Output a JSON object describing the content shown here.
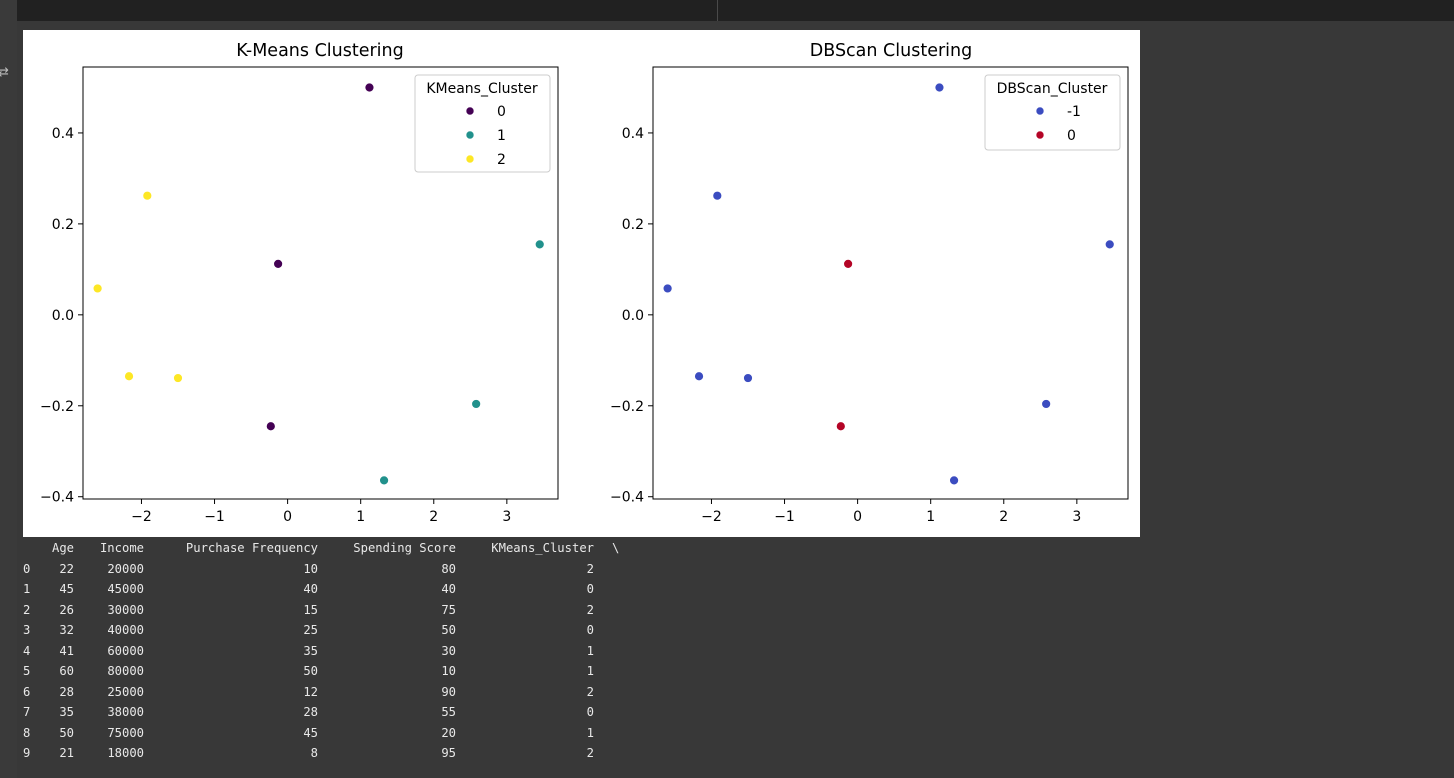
{
  "charts": [
    {
      "title": "K-Means Clustering",
      "legend_title": "KMeans_Cluster",
      "legend_entries": [
        {
          "label": "0",
          "color": "#440154"
        },
        {
          "label": "1",
          "color": "#21918c"
        },
        {
          "label": "2",
          "color": "#fde725"
        }
      ],
      "x_ticks": [
        "−2",
        "−1",
        "0",
        "1",
        "2",
        "3"
      ],
      "y_ticks": [
        "0.4",
        "0.2",
        "0.0",
        "−0.2",
        "−0.4"
      ]
    },
    {
      "title": "DBScan Clustering",
      "legend_title": "DBScan_Cluster",
      "legend_entries": [
        {
          "label": "-1",
          "color": "#3b4cc0"
        },
        {
          "label": "0",
          "color": "#b40426"
        }
      ],
      "x_ticks": [
        "−2",
        "−1",
        "0",
        "1",
        "2",
        "3"
      ],
      "y_ticks": [
        "0.4",
        "0.2",
        "0.0",
        "−0.2",
        "−0.4"
      ]
    }
  ],
  "chart_data": [
    {
      "type": "scatter",
      "title": "K-Means Clustering",
      "xlabel": "",
      "ylabel": "",
      "xlim": [
        -2.8,
        3.7
      ],
      "ylim": [
        -0.405,
        0.545
      ],
      "xticks": [
        -2,
        -1,
        0,
        1,
        2,
        3
      ],
      "yticks": [
        0.4,
        0.2,
        0.0,
        -0.2,
        -0.4
      ],
      "legend": "upper right",
      "legend_title": "KMeans_Cluster",
      "series": [
        {
          "name": "0",
          "color": "#440154",
          "points": [
            [
              1.12,
              0.5
            ],
            [
              -0.13,
              0.112
            ],
            [
              -0.23,
              -0.245
            ]
          ]
        },
        {
          "name": "1",
          "color": "#21918c",
          "points": [
            [
              3.45,
              0.155
            ],
            [
              2.58,
              -0.196
            ],
            [
              1.32,
              -0.364
            ]
          ]
        },
        {
          "name": "2",
          "color": "#fde725",
          "points": [
            [
              -1.92,
              0.262
            ],
            [
              -2.6,
              0.058
            ],
            [
              -2.17,
              -0.135
            ],
            [
              -1.5,
              -0.139
            ]
          ]
        }
      ]
    },
    {
      "type": "scatter",
      "title": "DBScan Clustering",
      "xlabel": "",
      "ylabel": "",
      "xlim": [
        -2.8,
        3.7
      ],
      "ylim": [
        -0.405,
        0.545
      ],
      "xticks": [
        -2,
        -1,
        0,
        1,
        2,
        3
      ],
      "yticks": [
        0.4,
        0.2,
        0.0,
        -0.2,
        -0.4
      ],
      "legend": "upper right",
      "legend_title": "DBScan_Cluster",
      "series": [
        {
          "name": "-1",
          "color": "#3b4cc0",
          "points": [
            [
              1.12,
              0.5
            ],
            [
              -1.92,
              0.262
            ],
            [
              3.45,
              0.155
            ],
            [
              -2.6,
              0.058
            ],
            [
              -2.17,
              -0.135
            ],
            [
              -1.5,
              -0.139
            ],
            [
              2.58,
              -0.196
            ],
            [
              1.32,
              -0.364
            ]
          ]
        },
        {
          "name": "0",
          "color": "#b40426",
          "points": [
            [
              -0.13,
              0.112
            ],
            [
              -0.23,
              -0.245
            ]
          ]
        }
      ]
    }
  ],
  "table": {
    "headers": [
      "Age",
      "Income",
      "Purchase Frequency",
      "Spending Score",
      "KMeans_Cluster",
      "\\"
    ],
    "rows": [
      [
        "0",
        "22",
        "20000",
        "10",
        "80",
        "2"
      ],
      [
        "1",
        "45",
        "45000",
        "40",
        "40",
        "0"
      ],
      [
        "2",
        "26",
        "30000",
        "15",
        "75",
        "2"
      ],
      [
        "3",
        "32",
        "40000",
        "25",
        "50",
        "0"
      ],
      [
        "4",
        "41",
        "60000",
        "35",
        "30",
        "1"
      ],
      [
        "5",
        "60",
        "80000",
        "50",
        "10",
        "1"
      ],
      [
        "6",
        "28",
        "25000",
        "12",
        "90",
        "2"
      ],
      [
        "7",
        "35",
        "38000",
        "28",
        "55",
        "0"
      ],
      [
        "8",
        "50",
        "75000",
        "45",
        "20",
        "1"
      ],
      [
        "9",
        "21",
        "18000",
        "8",
        "95",
        "2"
      ]
    ]
  }
}
